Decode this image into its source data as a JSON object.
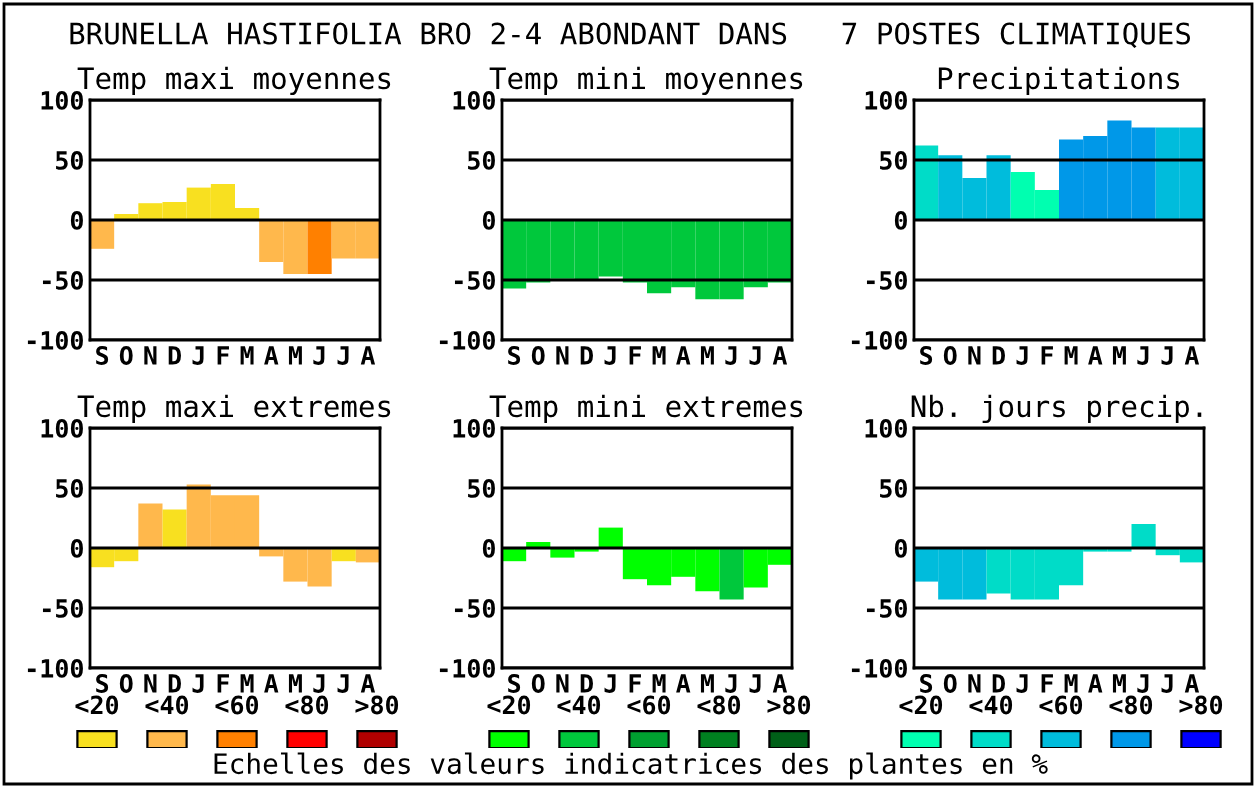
{
  "chart_data": [
    {
      "type": "bar",
      "title": "Temp maxi moyennes",
      "categories": [
        "S",
        "O",
        "N",
        "D",
        "J",
        "F",
        "M",
        "A",
        "M",
        "J",
        "J",
        "A"
      ],
      "values": [
        -24,
        5,
        14,
        15,
        27,
        30,
        10,
        -35,
        -45,
        -45,
        -32,
        -32
      ],
      "colors": [
        "#ffb84c",
        "#f8e020",
        "#f8e020",
        "#f8e020",
        "#f8e020",
        "#f8e020",
        "#f8e020",
        "#ffb84c",
        "#ffb84c",
        "#ff8000",
        "#ffb84c",
        "#ffb84c"
      ],
      "ylim": [
        -100,
        100
      ],
      "yticks": [
        -100,
        -50,
        0,
        50,
        100
      ],
      "grid": "y"
    },
    {
      "type": "bar",
      "title": "Temp mini moyennes",
      "categories": [
        "S",
        "O",
        "N",
        "D",
        "J",
        "F",
        "M",
        "A",
        "M",
        "J",
        "J",
        "A"
      ],
      "values": [
        -57,
        -52,
        -49,
        -50,
        -47,
        -52,
        -61,
        -56,
        -66,
        -66,
        -56,
        -52
      ],
      "colors": [
        "#00c83c",
        "#00c83c",
        "#00c83c",
        "#00c83c",
        "#00c83c",
        "#00c83c",
        "#00c83c",
        "#00c83c",
        "#00c83c",
        "#00c83c",
        "#00c83c",
        "#00c83c"
      ],
      "ylim": [
        -100,
        100
      ],
      "yticks": [
        -100,
        -50,
        0,
        50,
        100
      ],
      "grid": "y"
    },
    {
      "type": "bar",
      "title": "Precipitations",
      "categories": [
        "S",
        "O",
        "N",
        "D",
        "J",
        "F",
        "M",
        "A",
        "M",
        "J",
        "J",
        "A"
      ],
      "values": [
        62,
        54,
        35,
        54,
        40,
        25,
        67,
        70,
        83,
        77,
        77,
        77
      ],
      "colors": [
        "#00dcc8",
        "#00bcdc",
        "#00bcdc",
        "#00bcdc",
        "#00ffb0",
        "#00ffb0",
        "#0098e8",
        "#0098e8",
        "#0098e8",
        "#0098e8",
        "#00bcdc",
        "#00bcdc"
      ],
      "ylim": [
        -100,
        100
      ],
      "yticks": [
        -100,
        -50,
        0,
        50,
        100
      ],
      "grid": "y"
    },
    {
      "type": "bar",
      "title": "Temp maxi extremes",
      "categories": [
        "S",
        "O",
        "N",
        "D",
        "J",
        "F",
        "M",
        "A",
        "M",
        "J",
        "J",
        "A"
      ],
      "values": [
        -16,
        -11,
        37,
        32,
        53,
        44,
        44,
        -7,
        -28,
        -32,
        -11,
        -12
      ],
      "colors": [
        "#f8e020",
        "#f8e020",
        "#ffb84c",
        "#f8e020",
        "#ffb84c",
        "#ffb84c",
        "#ffb84c",
        "#ffb84c",
        "#ffb84c",
        "#ffb84c",
        "#f8e020",
        "#ffb84c"
      ],
      "ylim": [
        -100,
        100
      ],
      "yticks": [
        -100,
        -50,
        0,
        50,
        100
      ],
      "grid": "y"
    },
    {
      "type": "bar",
      "title": "Temp mini extremes",
      "categories": [
        "S",
        "O",
        "N",
        "D",
        "J",
        "F",
        "M",
        "A",
        "M",
        "J",
        "J",
        "A"
      ],
      "values": [
        -11,
        5,
        -8,
        -3,
        17,
        -26,
        -31,
        -24,
        -36,
        -43,
        -33,
        -14
      ],
      "colors": [
        "#00ff00",
        "#00ff00",
        "#00ff00",
        "#00ff00",
        "#00ff00",
        "#00ff00",
        "#00ff00",
        "#00ff00",
        "#00ff00",
        "#00c83c",
        "#00ff00",
        "#00ff00"
      ],
      "ylim": [
        -100,
        100
      ],
      "yticks": [
        -100,
        -50,
        0,
        50,
        100
      ],
      "grid": "y"
    },
    {
      "type": "bar",
      "title": "Nb. jours precip.",
      "categories": [
        "S",
        "O",
        "N",
        "D",
        "J",
        "F",
        "M",
        "A",
        "M",
        "J",
        "J",
        "A"
      ],
      "values": [
        -28,
        -43,
        -43,
        -38,
        -43,
        -43,
        -31,
        -3,
        -3,
        20,
        -6,
        -12
      ],
      "colors": [
        "#00bcdc",
        "#00bcdc",
        "#00bcdc",
        "#00dcc8",
        "#00dcc8",
        "#00dcc8",
        "#00dcc8",
        "#00dcc8",
        "#00dcc8",
        "#00dcc8",
        "#00dcc8",
        "#00dcc8"
      ],
      "ylim": [
        -100,
        100
      ],
      "yticks": [
        -100,
        -50,
        0,
        50,
        100
      ],
      "grid": "y"
    },
    {
      "type": "other",
      "categories": [
        "<20",
        "<40",
        "<60",
        "<80",
        ">80"
      ],
      "colors": [
        "#f8e020",
        "#ffb84c",
        "#ff8000",
        "#ff0000",
        "#b00000"
      ]
    },
    {
      "type": "other",
      "categories": [
        "<20",
        "<40",
        "<60",
        "<80",
        ">80"
      ],
      "colors": [
        "#00ff00",
        "#00c83c",
        "#00a030",
        "#008020",
        "#006018"
      ]
    },
    {
      "type": "other",
      "categories": [
        "<20",
        "<40",
        "<60",
        "<80",
        ">80"
      ],
      "colors": [
        "#00ffb0",
        "#00dcc8",
        "#00bcdc",
        "#0098e8",
        "#0000ff"
      ]
    },
    {
      "type": "other",
      "title": "BRUNELLA HASTIFOLIA BRO 2-4 ABONDANT DANS   7 POSTES CLIMATIQUES",
      "annotations": [
        "Echelles des valeurs indicatrices des plantes en %"
      ]
    }
  ]
}
